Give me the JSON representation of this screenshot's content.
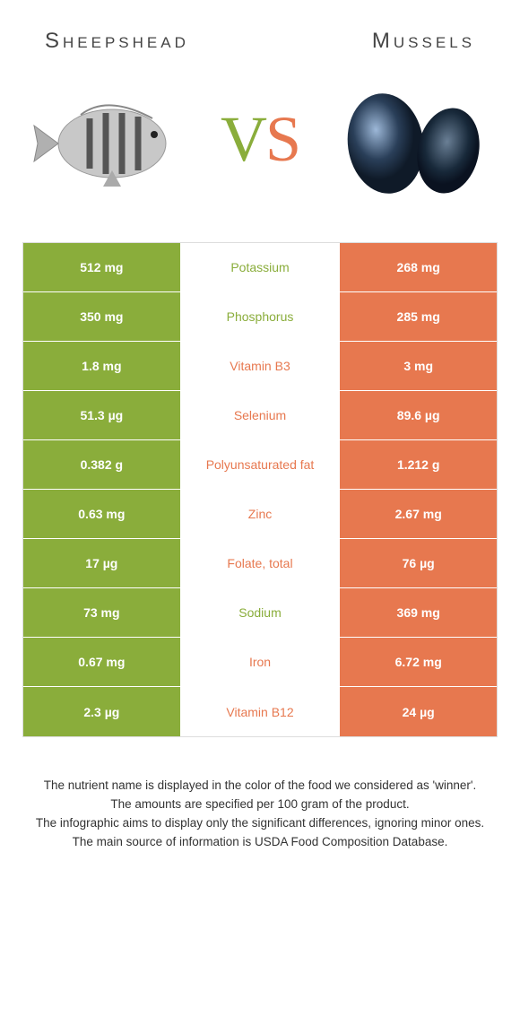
{
  "header": {
    "left_title": "Sheepshead",
    "right_title": "Mussels"
  },
  "vs": {
    "v": "V",
    "s": "S"
  },
  "colors": {
    "green": "#8aad3b",
    "orange": "#e7784f",
    "white": "#ffffff"
  },
  "table": {
    "rows": [
      {
        "left": "512 mg",
        "mid": "Potassium",
        "right": "268 mg",
        "winner": "left"
      },
      {
        "left": "350 mg",
        "mid": "Phosphorus",
        "right": "285 mg",
        "winner": "left"
      },
      {
        "left": "1.8 mg",
        "mid": "Vitamin B3",
        "right": "3 mg",
        "winner": "right"
      },
      {
        "left": "51.3 µg",
        "mid": "Selenium",
        "right": "89.6 µg",
        "winner": "right"
      },
      {
        "left": "0.382 g",
        "mid": "Polyunsaturated fat",
        "right": "1.212 g",
        "winner": "right"
      },
      {
        "left": "0.63 mg",
        "mid": "Zinc",
        "right": "2.67 mg",
        "winner": "right"
      },
      {
        "left": "17 µg",
        "mid": "Folate, total",
        "right": "76 µg",
        "winner": "right"
      },
      {
        "left": "73 mg",
        "mid": "Sodium",
        "right": "369 mg",
        "winner": "left"
      },
      {
        "left": "0.67 mg",
        "mid": "Iron",
        "right": "6.72 mg",
        "winner": "right"
      },
      {
        "left": "2.3 µg",
        "mid": "Vitamin B12",
        "right": "24 µg",
        "winner": "right"
      }
    ]
  },
  "footer": {
    "line1": "The nutrient name is displayed in the color of the food we considered as 'winner'.",
    "line2": "The amounts are specified per 100 gram of the product.",
    "line3": "The infographic aims to display only the significant differences, ignoring minor ones.",
    "line4": "The main source of information is USDA Food Composition Database."
  }
}
